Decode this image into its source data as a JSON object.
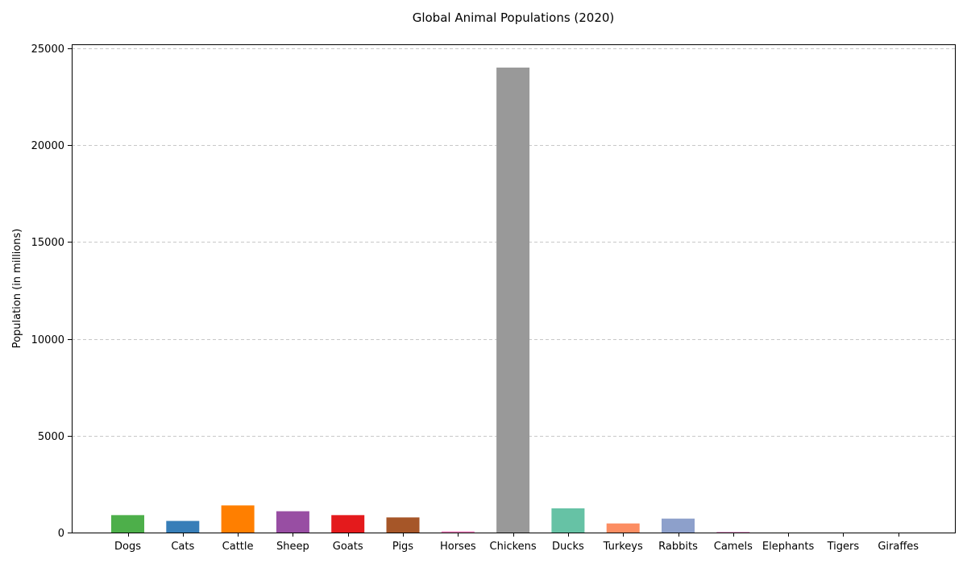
{
  "chart_data": {
    "type": "bar",
    "title": "Global Animal Populations (2020)",
    "xlabel": "",
    "ylabel": "Population (in millions)",
    "ylim": [
      0,
      25200
    ],
    "yticks": [
      0,
      5000,
      10000,
      15000,
      20000,
      25000
    ],
    "grid": "y-dashed",
    "categories": [
      "Dogs",
      "Cats",
      "Cattle",
      "Sheep",
      "Goats",
      "Pigs",
      "Horses",
      "Chickens",
      "Ducks",
      "Turkeys",
      "Rabbits",
      "Camels",
      "Elephants",
      "Tigers",
      "Giraffes"
    ],
    "values": [
      900,
      600,
      1400,
      1100,
      900,
      780,
      60,
      24000,
      1250,
      470,
      720,
      35,
      0.5,
      0.004,
      0.1
    ],
    "colors": [
      "#4daf4a",
      "#377eb8",
      "#ff7f00",
      "#984ea3",
      "#e41a1c",
      "#a65628",
      "#f781bf",
      "#999999",
      "#66c2a5",
      "#fc8d62",
      "#8da0cb",
      "#e78ac3",
      "#a6d854",
      "#ffd92f",
      "#e5c494"
    ]
  }
}
